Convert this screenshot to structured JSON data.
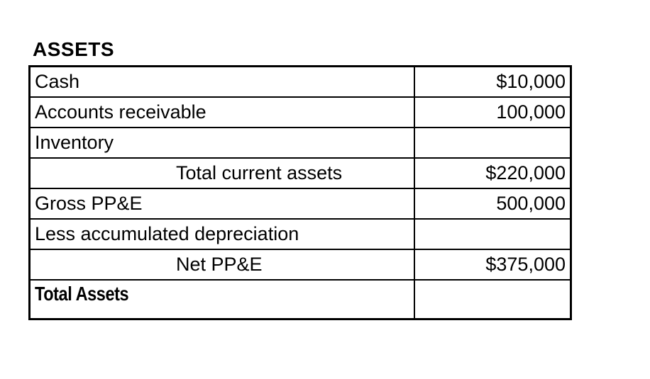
{
  "page": {
    "background_color": "#ffffff",
    "border_color": "#000000",
    "highlight_color": "#dbe6f2",
    "text_color": "#000000"
  },
  "section": {
    "title": "ASSETS"
  },
  "table": {
    "rows": [
      {
        "label": "Cash",
        "value": "$10,000",
        "indent": false,
        "bold": false,
        "value_highlight": false
      },
      {
        "label": "Accounts receivable",
        "value": "100,000",
        "indent": false,
        "bold": false,
        "value_highlight": false
      },
      {
        "label": "Inventory",
        "value": "",
        "indent": false,
        "bold": false,
        "value_highlight": true
      },
      {
        "label": "Total current assets",
        "value": "$220,000",
        "indent": true,
        "bold": false,
        "value_highlight": false
      },
      {
        "label": "Gross PP&E",
        "value": "500,000",
        "indent": false,
        "bold": false,
        "value_highlight": false
      },
      {
        "label": "Less accumulated depreciation",
        "value": "",
        "indent": false,
        "bold": false,
        "value_highlight": true
      },
      {
        "label": "Net PP&E",
        "value": "$375,000",
        "indent": true,
        "bold": false,
        "value_highlight": false
      },
      {
        "label": "Total Assets",
        "value": "",
        "indent": false,
        "bold": true,
        "value_highlight": true
      }
    ]
  }
}
